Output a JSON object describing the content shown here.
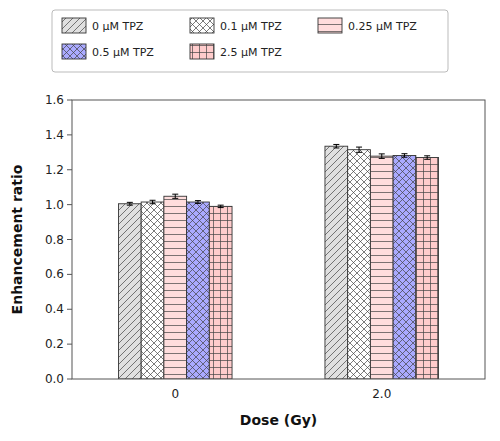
{
  "chart_data": {
    "type": "bar",
    "xlabel": "Dose (Gy)",
    "ylabel": "Enhancement ratio",
    "categories": [
      "0",
      "2.0"
    ],
    "series": [
      {
        "name": "0 μM TPZ",
        "color": "#e0e0e0",
        "values": [
          1.005,
          1.335
        ],
        "errors": [
          0.008,
          0.01
        ]
      },
      {
        "name": "0.1 μM TPZ",
        "color": "white",
        "values": [
          1.015,
          1.315
        ],
        "errors": [
          0.01,
          0.015
        ]
      },
      {
        "name": "0.25 μM TPZ",
        "color": "#ffdddd",
        "values": [
          1.048,
          1.278
        ],
        "errors": [
          0.012,
          0.013
        ]
      },
      {
        "name": "0.5 μM TPZ",
        "color": "#aaaaff",
        "values": [
          1.015,
          1.282
        ],
        "errors": [
          0.008,
          0.01
        ]
      },
      {
        "name": "2.5 μM TPZ",
        "color": "#ffcccc",
        "values": [
          0.99,
          1.27
        ],
        "errors": [
          0.007,
          0.01
        ]
      }
    ],
    "ylim": [
      0.0,
      1.6
    ],
    "yticks": [
      {
        "value": 0.0,
        "label": "0.0"
      },
      0.2,
      0.4,
      0.6,
      0.8,
      {
        "value": 1.0,
        "label": "1.0"
      },
      1.2,
      1.4,
      1.6
    ],
    "grid": false,
    "legend": "top"
  }
}
